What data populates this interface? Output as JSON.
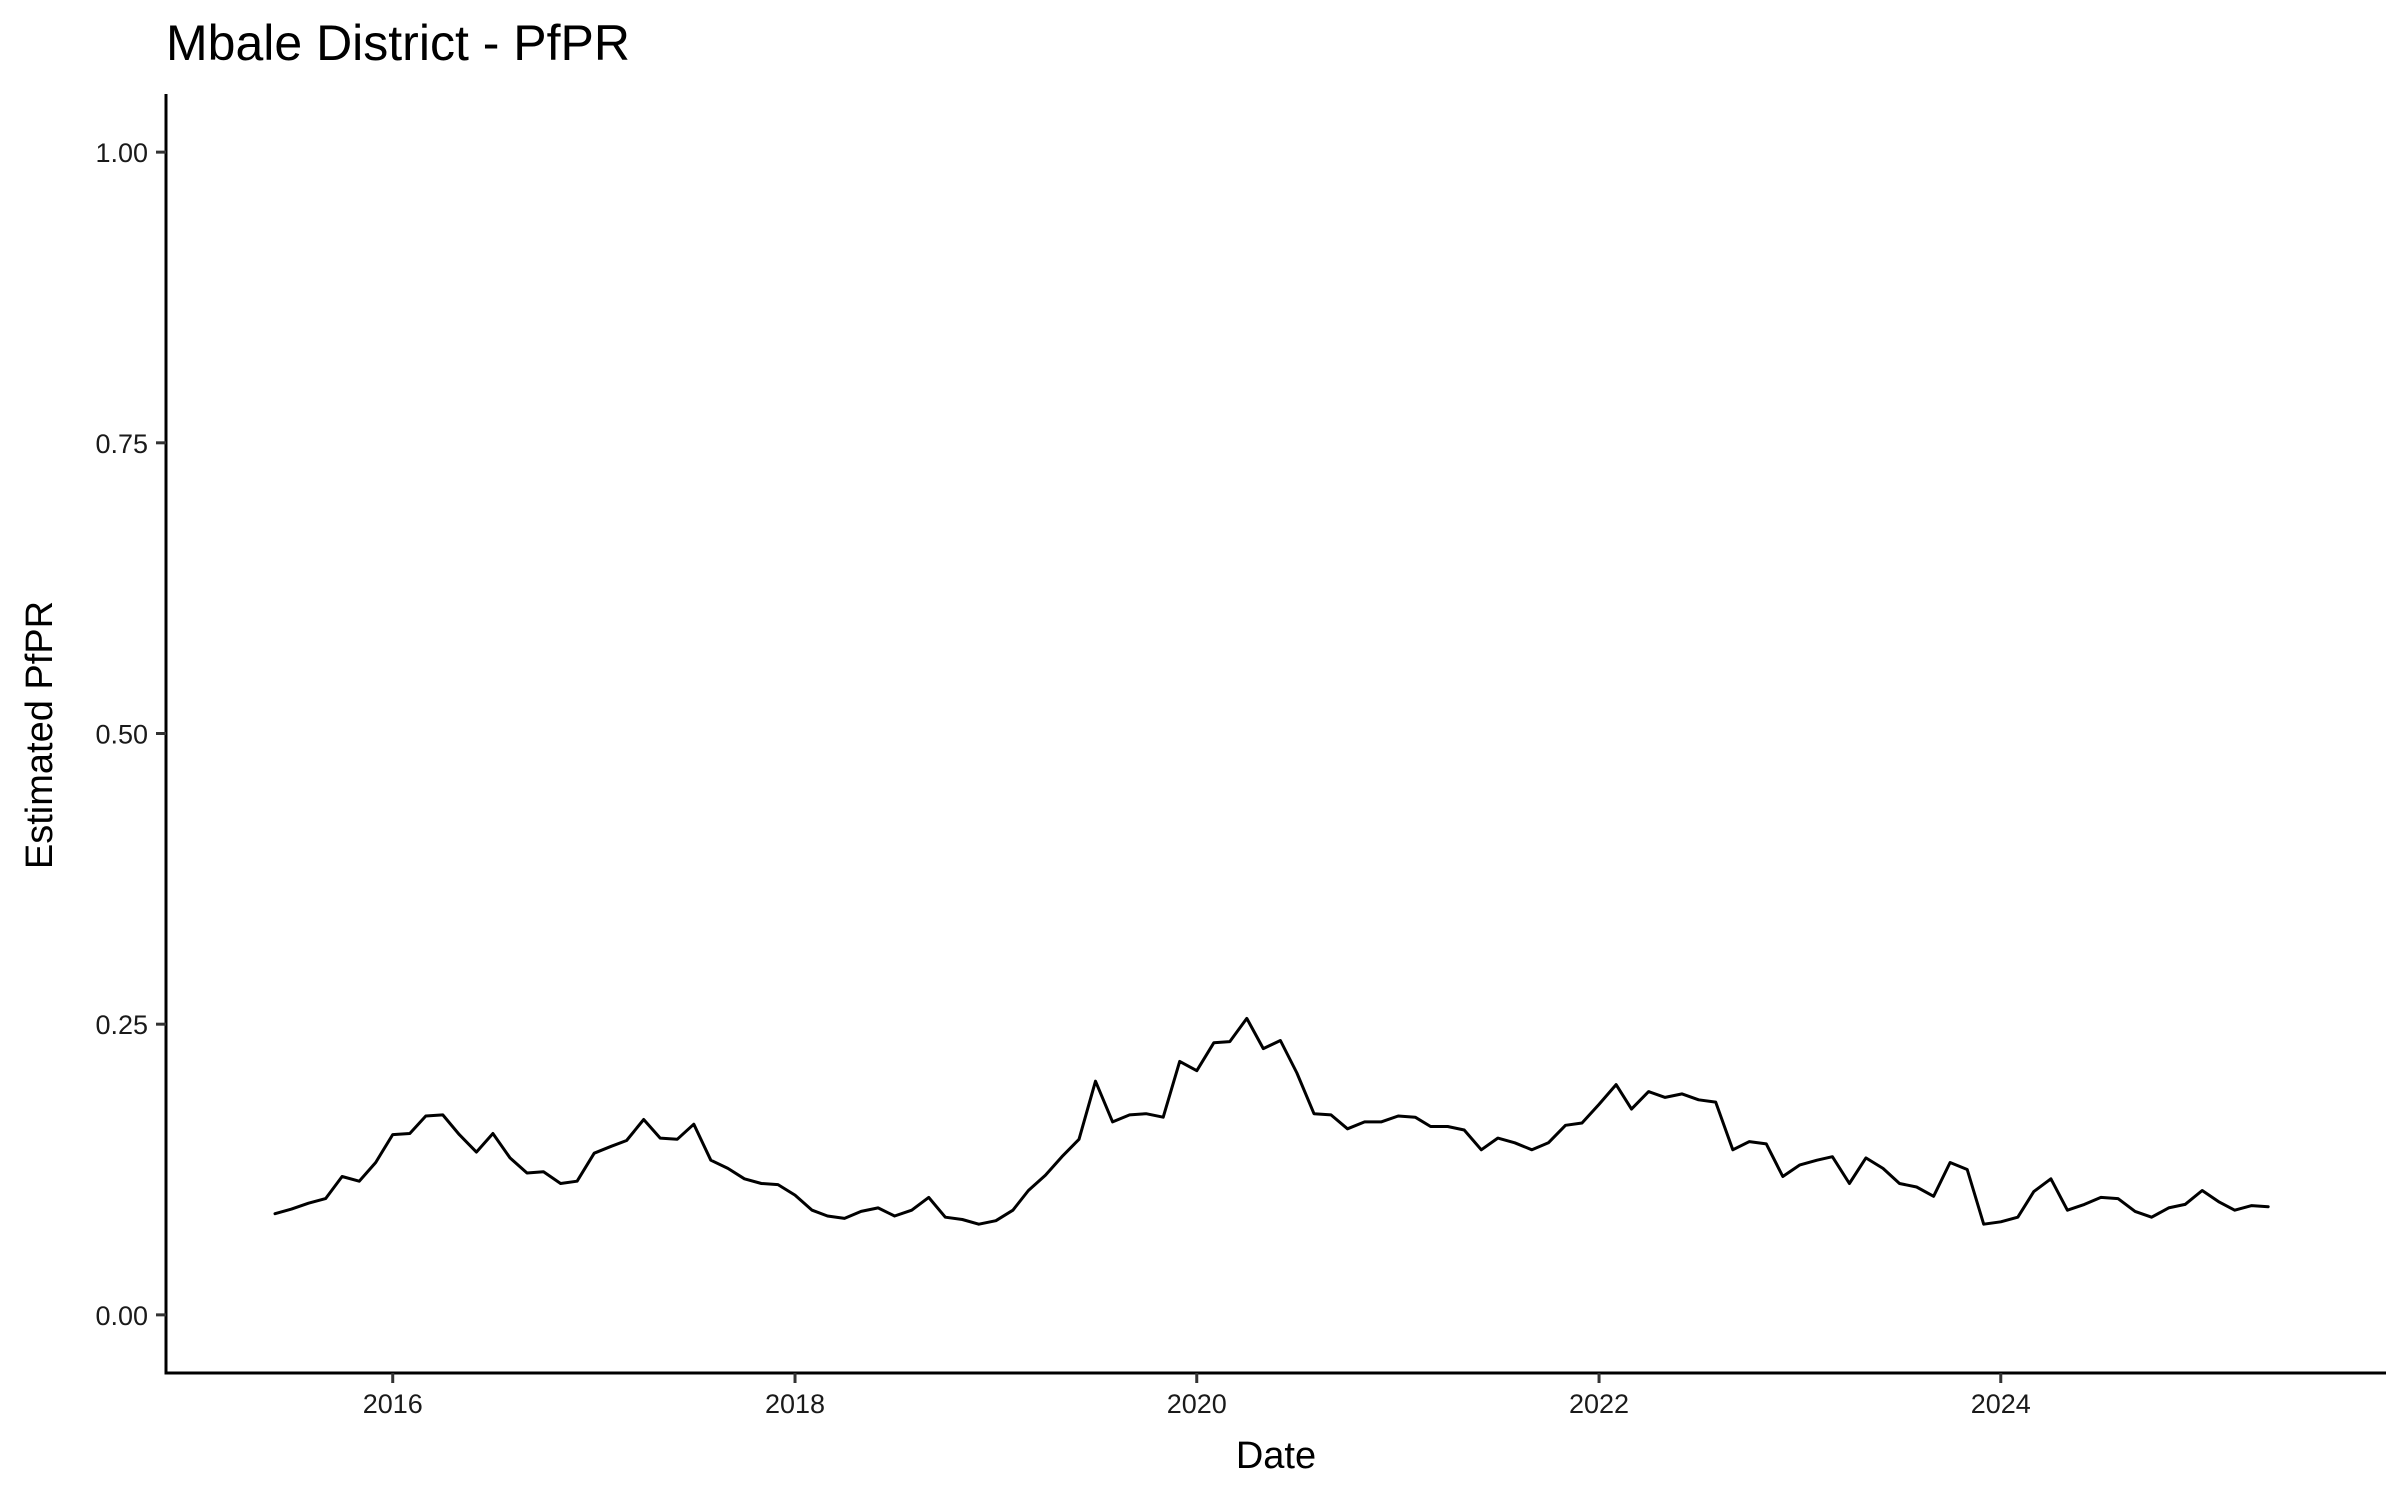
{
  "chart_data": {
    "type": "line",
    "title": "Mbale District - PfPR",
    "xlabel": "Date",
    "ylabel": "Estimated PfPR",
    "xlim": [
      "2014-11-15",
      "2025-12-01"
    ],
    "ylim": [
      -0.05,
      1.05
    ],
    "x_ticks": [
      "2016-01-01",
      "2018-01-01",
      "2020-01-01",
      "2022-01-01",
      "2024-01-01"
    ],
    "x_tick_labels": [
      "2016",
      "2018",
      "2020",
      "2022",
      "2024"
    ],
    "y_ticks": [
      0.0,
      0.25,
      0.5,
      0.75,
      1.0
    ],
    "y_tick_labels": [
      "0.00",
      "0.25",
      "0.50",
      "0.75",
      "1.00"
    ],
    "grid": false,
    "line_color": "#000000",
    "series": [
      {
        "start": "2015-06",
        "values": [
          0.087,
          0.091,
          0.096,
          0.1,
          0.119,
          0.115,
          0.131,
          0.155,
          0.156,
          0.171,
          0.172,
          0.155,
          0.14,
          0.156,
          0.135,
          0.122,
          0.123,
          0.113,
          0.115,
          0.139,
          0.145,
          0.15,
          0.168,
          0.152,
          0.151,
          0.164,
          0.133,
          0.126,
          0.117,
          0.113,
          0.112,
          0.103,
          0.09,
          0.085,
          0.083,
          0.089,
          0.092,
          0.085,
          0.09,
          0.101,
          0.084,
          0.082,
          0.078,
          0.081,
          0.09,
          0.107,
          0.12,
          0.136,
          0.151,
          0.201,
          0.166,
          0.172,
          0.173,
          0.17,
          0.218,
          0.21,
          0.234,
          0.235,
          0.255,
          0.229,
          0.236,
          0.208,
          0.173,
          0.172,
          0.16,
          0.166,
          0.166,
          0.171,
          0.17,
          0.162,
          0.162,
          0.159,
          0.142,
          0.152,
          0.148,
          0.142,
          0.148,
          0.163,
          0.165,
          0.181,
          0.198,
          0.177,
          0.192,
          0.187,
          0.19,
          0.185,
          0.183,
          0.142,
          0.149,
          0.147,
          0.119,
          0.129,
          0.133,
          0.136,
          0.113,
          0.135,
          0.126,
          0.113,
          0.11,
          0.102,
          0.131,
          0.125,
          0.078,
          0.08,
          0.084,
          0.106,
          0.117,
          0.09,
          0.095,
          0.101,
          0.1,
          0.089,
          0.084,
          0.092,
          0.095,
          0.107,
          0.097,
          0.09,
          0.094,
          0.093
        ]
      }
    ]
  }
}
